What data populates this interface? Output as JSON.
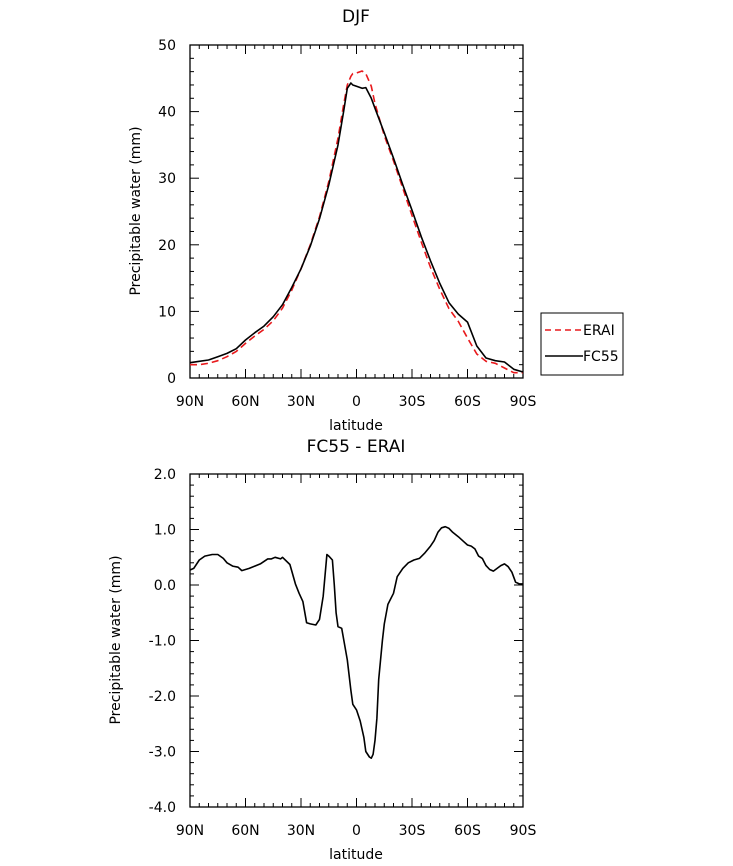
{
  "chart_data": [
    {
      "type": "line",
      "title": "DJF",
      "xlabel": "latitude",
      "ylabel": "Precipitable water (mm)",
      "xlim": [
        90,
        -90
      ],
      "ylim": [
        0,
        50
      ],
      "x_ticks": [
        90,
        60,
        30,
        0,
        -30,
        -60,
        -90
      ],
      "x_tick_labels": [
        "90N",
        "60N",
        "30N",
        "0",
        "30S",
        "60S",
        "90S"
      ],
      "y_ticks": [
        0,
        10,
        20,
        30,
        40,
        50
      ],
      "y_tick_labels": [
        "0",
        "10",
        "20",
        "30",
        "40",
        "50"
      ],
      "legend": "right",
      "series": [
        {
          "name": "ERAI",
          "color": "#e8191c",
          "style": "dashed",
          "x": [
            90,
            85,
            80,
            75,
            70,
            65,
            60,
            55,
            50,
            45,
            40,
            35,
            30,
            25,
            20,
            15,
            10,
            7,
            5,
            3,
            2,
            0,
            -3,
            -5,
            -8,
            -10,
            -15,
            -20,
            -25,
            -30,
            -35,
            -40,
            -45,
            -50,
            -55,
            -60,
            -65,
            -70,
            -75,
            -80,
            -85,
            -90
          ],
          "y": [
            2.0,
            2.0,
            2.2,
            2.6,
            3.2,
            4.0,
            5.2,
            6.3,
            7.3,
            8.6,
            10.5,
            13.2,
            16.4,
            20.0,
            24.2,
            29.5,
            36.0,
            41.0,
            44.0,
            45.3,
            45.7,
            45.8,
            46.1,
            45.7,
            43.8,
            41.2,
            36.4,
            32.6,
            28.5,
            24.4,
            20.4,
            16.6,
            13.3,
            10.4,
            8.5,
            6.0,
            3.6,
            2.5,
            2.2,
            1.5,
            0.8,
            0.8
          ]
        },
        {
          "name": "FC55",
          "color": "#000000",
          "style": "solid",
          "x": [
            90,
            85,
            80,
            75,
            70,
            65,
            60,
            55,
            50,
            45,
            40,
            35,
            30,
            25,
            20,
            15,
            10,
            7,
            5,
            3,
            2,
            0,
            -3,
            -5,
            -8,
            -10,
            -15,
            -20,
            -25,
            -30,
            -35,
            -40,
            -45,
            -50,
            -55,
            -60,
            -65,
            -70,
            -75,
            -80,
            -85,
            -90
          ],
          "y": [
            2.3,
            2.5,
            2.7,
            3.2,
            3.7,
            4.4,
            5.7,
            6.8,
            7.8,
            9.2,
            11.0,
            13.6,
            16.4,
            19.8,
            23.9,
            29.0,
            35.0,
            40.0,
            43.5,
            44.3,
            44.0,
            43.8,
            43.5,
            43.6,
            42.0,
            40.5,
            36.8,
            33.0,
            29.0,
            25.2,
            21.2,
            17.6,
            14.2,
            11.3,
            9.6,
            8.4,
            4.8,
            3.0,
            2.6,
            2.4,
            1.3,
            0.9
          ]
        }
      ]
    },
    {
      "type": "line",
      "title": "FC55 - ERAI",
      "xlabel": "latitude",
      "ylabel": "Precipitable water (mm)",
      "xlim": [
        90,
        -90
      ],
      "ylim": [
        -4,
        2
      ],
      "x_ticks": [
        90,
        60,
        30,
        0,
        -30,
        -60,
        -90
      ],
      "x_tick_labels": [
        "90N",
        "60N",
        "30N",
        "0",
        "30S",
        "60S",
        "90S"
      ],
      "y_ticks": [
        2,
        1,
        0,
        -1,
        -2,
        -3,
        -4
      ],
      "y_tick_labels": [
        "2.0",
        "1.0",
        "0.0",
        "-1.0",
        "-2.0",
        "-3.0",
        "-4.0"
      ],
      "series": [
        {
          "color": "#000000",
          "style": "solid",
          "x": [
            90,
            88,
            85,
            82,
            78,
            75,
            72,
            70,
            67,
            64,
            62,
            58,
            55,
            52,
            48,
            46,
            44,
            41,
            40,
            36,
            35,
            33,
            31,
            29,
            27,
            25,
            22,
            20,
            18,
            16,
            15,
            13,
            12,
            11,
            10,
            8,
            5,
            3,
            2,
            0,
            -2,
            -4,
            -5,
            -7,
            -8,
            -9,
            -10,
            -11,
            -12,
            -14,
            -15,
            -17,
            -20,
            -22,
            -25,
            -28,
            -31,
            -34,
            -37,
            -40,
            -42,
            -44,
            -46,
            -48,
            -50,
            -52,
            -55,
            -58,
            -60,
            -62,
            -64,
            -66,
            -68,
            -70,
            -72,
            -74,
            -76,
            -78,
            -80,
            -82,
            -84,
            -86,
            -88,
            -90
          ],
          "y": [
            0.27,
            0.3,
            0.45,
            0.52,
            0.55,
            0.55,
            0.48,
            0.4,
            0.34,
            0.32,
            0.26,
            0.3,
            0.34,
            0.38,
            0.47,
            0.47,
            0.5,
            0.47,
            0.5,
            0.37,
            0.25,
            0.02,
            -0.15,
            -0.3,
            -0.68,
            -0.7,
            -0.72,
            -0.62,
            -0.2,
            0.55,
            0.52,
            0.45,
            0.0,
            -0.5,
            -0.75,
            -0.78,
            -1.35,
            -1.9,
            -2.15,
            -2.25,
            -2.45,
            -2.75,
            -3.0,
            -3.1,
            -3.12,
            -3.05,
            -2.8,
            -2.4,
            -1.7,
            -1.0,
            -0.7,
            -0.35,
            -0.15,
            0.15,
            0.3,
            0.4,
            0.45,
            0.48,
            0.58,
            0.7,
            0.8,
            0.95,
            1.03,
            1.05,
            1.02,
            0.95,
            0.87,
            0.78,
            0.72,
            0.7,
            0.65,
            0.52,
            0.48,
            0.35,
            0.28,
            0.25,
            0.3,
            0.35,
            0.38,
            0.33,
            0.23,
            0.05,
            0.02,
            0.02
          ]
        }
      ]
    }
  ]
}
